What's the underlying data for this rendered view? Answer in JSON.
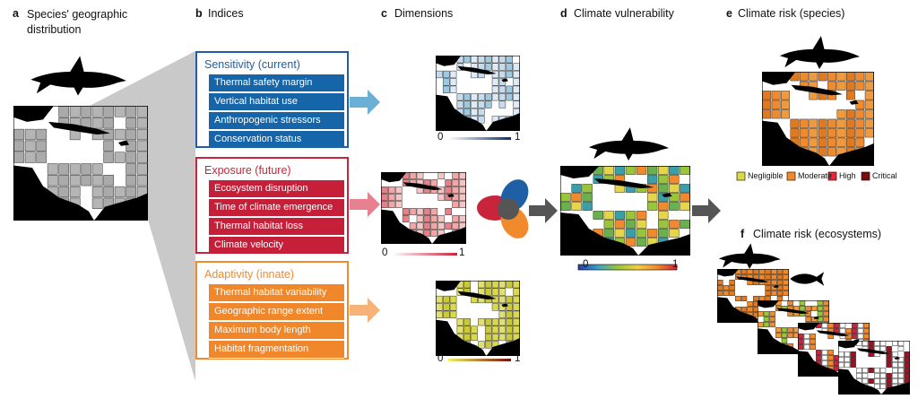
{
  "panels": [
    {
      "letter": "a",
      "title": "Species' geographic distribution"
    },
    {
      "letter": "b",
      "title": "Indices"
    },
    {
      "letter": "c",
      "title": "Dimensions"
    },
    {
      "letter": "d",
      "title": "Climate vulnerability"
    },
    {
      "letter": "e",
      "title": "Climate risk (species)"
    },
    {
      "letter": "f",
      "title": "Climate risk (ecosystems)"
    }
  ],
  "indices": [
    {
      "title": "Sensitivity (current)",
      "items": [
        "Thermal safety margin",
        "Vertical habitat use",
        "Anthropogenic stressors",
        "Conservation status"
      ]
    },
    {
      "title": "Exposure (future)",
      "items": [
        "Ecosystem disruption",
        "Time of climate emergence",
        "Thermal habitat loss",
        "Climate velocity"
      ]
    },
    {
      "title": "Adaptivity (innate)",
      "items": [
        "Thermal habitat variability",
        "Geographic range extent",
        "Maximum body length",
        "Habitat fragmentation"
      ]
    }
  ],
  "colorbars": [
    {
      "min": 0,
      "max": 1
    },
    {
      "min": 0,
      "max": 1
    },
    {
      "min": 0,
      "max": 1
    },
    {
      "min": 0,
      "max": 1
    }
  ],
  "risk_legend": [
    "Negligible",
    "Moderate",
    "High",
    "Critical"
  ]
}
